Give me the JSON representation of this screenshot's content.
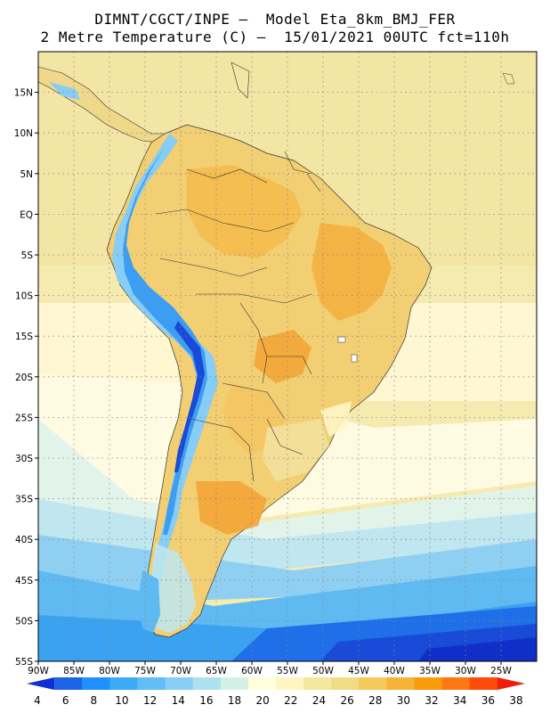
{
  "header": {
    "line1": "DIMNT/CGCT/INPE –  Model Eta_8km_BMJ_FER",
    "line2": "2 Metre Temperature (C) –  15/01/2021 00UTC fct=110h"
  },
  "axes": {
    "lon_ticks": [
      "90W",
      "85W",
      "80W",
      "75W",
      "70W",
      "65W",
      "60W",
      "55W",
      "50W",
      "45W",
      "40W",
      "35W",
      "30W",
      "25W"
    ],
    "lat_ticks": [
      "15N",
      "10N",
      "5N",
      "EQ",
      "5S",
      "10S",
      "15S",
      "20S",
      "25S",
      "30S",
      "35S",
      "40S",
      "45S",
      "50S",
      "55S"
    ]
  },
  "colorbar": {
    "labels": [
      "4",
      "6",
      "8",
      "10",
      "12",
      "14",
      "16",
      "18",
      "20",
      "22",
      "24",
      "26",
      "28",
      "30",
      "32",
      "34",
      "36",
      "38"
    ],
    "colors": [
      "#0f2fd2",
      "#1e64e6",
      "#1e90ff",
      "#3caaf5",
      "#5fbef5",
      "#87cdf5",
      "#aee0f0",
      "#d2f0e6",
      "#ffffdc",
      "#fff5c3",
      "#f5e6a0",
      "#f0dc82",
      "#f5c85a",
      "#f5b437",
      "#fa9b0a",
      "#ff7814",
      "#ff4b0a",
      "#f01e0a"
    ]
  },
  "chart_data": {
    "type": "heatmap",
    "variable": "2 Metre Temperature (C)",
    "model": "Eta_8km_BMJ_FER",
    "institution": "DIMNT/CGCT/INPE",
    "init_time": "15/01/2021 00UTC",
    "forecast_hour": "110h",
    "x_range_deg": [
      -90,
      -20
    ],
    "y_range_deg": [
      -55,
      20
    ],
    "contour_levels": [
      4,
      6,
      8,
      10,
      12,
      14,
      16,
      18,
      20,
      22,
      24,
      26,
      28,
      30,
      32,
      34,
      36,
      38
    ]
  }
}
